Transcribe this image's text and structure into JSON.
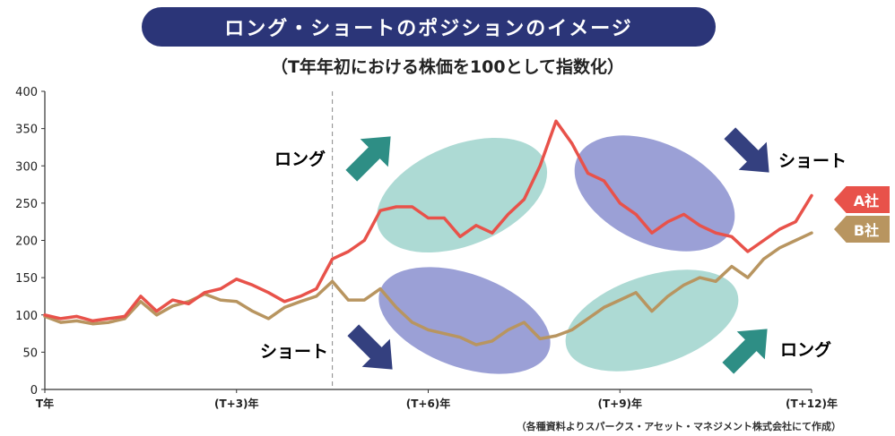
{
  "header": {
    "title": "ロング・ショートのポジションのイメージ",
    "subtitle": "（T年年初における株価を100として指数化）"
  },
  "source_note": "（各種資料よりスパークス・アセット・マネジメント株式会社にて作成）",
  "annotations": {
    "long_top": "ロング",
    "short_top": "ショート",
    "short_bottom": "ショート",
    "long_bottom": "ロング"
  },
  "colors": {
    "series_a": "#e8524a",
    "series_b": "#b89560",
    "teal_ellipse": "#9fd3cc",
    "blue_ellipse": "#8a8fcf",
    "teal_arrow": "#2e8e85",
    "blue_arrow": "#34407f"
  },
  "chart_data": {
    "type": "line",
    "title": "",
    "xlabel": "",
    "ylabel": "",
    "ylim": [
      0,
      400
    ],
    "yticks": [
      0,
      50,
      100,
      150,
      200,
      250,
      300,
      350,
      400
    ],
    "xlim": [
      0,
      12
    ],
    "xticks": [
      {
        "x": 0,
        "label": "T年"
      },
      {
        "x": 3,
        "label": "(T+3)年"
      },
      {
        "x": 6,
        "label": "(T+6)年"
      },
      {
        "x": 9,
        "label": "(T+9)年"
      },
      {
        "x": 12,
        "label": "(T+12)年"
      }
    ],
    "vline_x": 4.5,
    "series": [
      {
        "name": "A社",
        "x": [
          0,
          0.25,
          0.5,
          0.75,
          1.0,
          1.25,
          1.5,
          1.75,
          2.0,
          2.25,
          2.5,
          2.75,
          3.0,
          3.25,
          3.5,
          3.75,
          4.0,
          4.25,
          4.5,
          4.75,
          5.0,
          5.25,
          5.5,
          5.75,
          6.0,
          6.25,
          6.5,
          6.75,
          7.0,
          7.25,
          7.5,
          7.75,
          8.0,
          8.25,
          8.5,
          8.75,
          9.0,
          9.25,
          9.5,
          9.75,
          10.0,
          10.25,
          10.5,
          10.75,
          11.0,
          11.25,
          11.5,
          11.75,
          12.0
        ],
        "values": [
          100,
          95,
          98,
          92,
          95,
          98,
          125,
          105,
          120,
          115,
          130,
          135,
          148,
          140,
          130,
          118,
          125,
          135,
          175,
          185,
          200,
          240,
          245,
          245,
          230,
          230,
          205,
          220,
          210,
          235,
          255,
          300,
          360,
          330,
          290,
          280,
          250,
          235,
          210,
          225,
          235,
          220,
          210,
          205,
          185,
          200,
          215,
          225,
          260
        ]
      },
      {
        "name": "B社",
        "x": [
          0,
          0.25,
          0.5,
          0.75,
          1.0,
          1.25,
          1.5,
          1.75,
          2.0,
          2.25,
          2.5,
          2.75,
          3.0,
          3.25,
          3.5,
          3.75,
          4.0,
          4.25,
          4.5,
          4.75,
          5.0,
          5.25,
          5.5,
          5.75,
          6.0,
          6.25,
          6.5,
          6.75,
          7.0,
          7.25,
          7.5,
          7.75,
          8.0,
          8.25,
          8.5,
          8.75,
          9.0,
          9.25,
          9.5,
          9.75,
          10.0,
          10.25,
          10.5,
          10.75,
          11.0,
          11.25,
          11.5,
          11.75,
          12.0
        ],
        "values": [
          98,
          90,
          92,
          88,
          90,
          95,
          118,
          100,
          112,
          118,
          128,
          120,
          118,
          105,
          95,
          110,
          118,
          125,
          145,
          120,
          120,
          135,
          110,
          90,
          80,
          75,
          70,
          60,
          65,
          80,
          90,
          68,
          72,
          80,
          95,
          110,
          120,
          130,
          105,
          125,
          140,
          150,
          145,
          165,
          150,
          175,
          190,
          200,
          210
        ]
      }
    ]
  }
}
